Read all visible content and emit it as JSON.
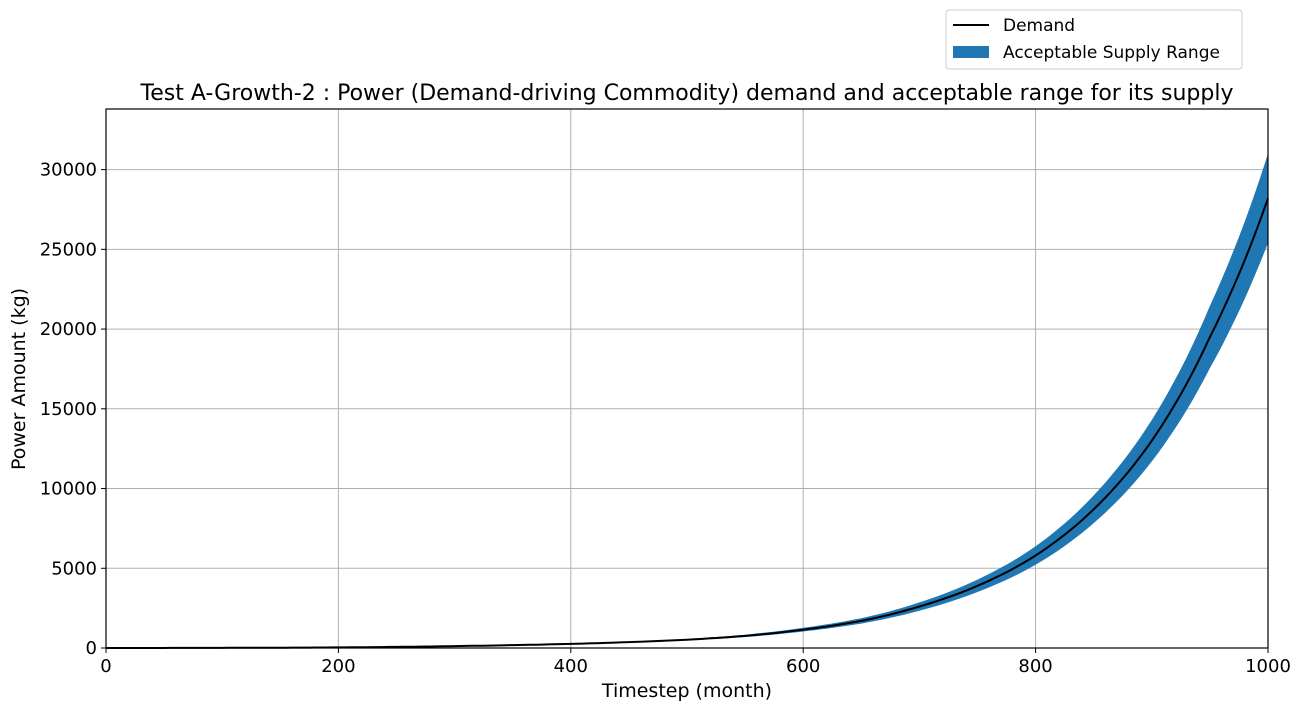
{
  "chart_data": {
    "type": "area",
    "title": "Test A-Growth-2 : Power (Demand-driving Commodity) demand and acceptable range for its supply",
    "xlabel": "Timestep (month)",
    "ylabel": "Power Amount (kg)",
    "xlim": [
      0,
      1000
    ],
    "ylim": [
      0,
      33800
    ],
    "xticks": [
      0,
      200,
      400,
      600,
      800,
      1000
    ],
    "yticks": [
      0,
      5000,
      10000,
      15000,
      20000,
      25000,
      30000
    ],
    "grid": true,
    "legend_position": "upper-right, above plot",
    "x": [
      0,
      50,
      100,
      150,
      200,
      250,
      300,
      350,
      400,
      450,
      500,
      550,
      600,
      650,
      700,
      750,
      800,
      850,
      900,
      950,
      1000
    ],
    "series": [
      {
        "name": "Demand",
        "kind": "line",
        "color": "#000000",
        "values": [
          1,
          3,
          9,
          20,
          38,
          70,
          120,
          180,
          260,
          370,
          520,
          760,
          1150,
          1700,
          2600,
          3900,
          5800,
          8700,
          13000,
          19500,
          28200
        ]
      },
      {
        "name": "Acceptable Supply Range",
        "kind": "band",
        "color": "#1f77b4",
        "lower": [
          0.9,
          2.7,
          8.1,
          18,
          34,
          63,
          108,
          162,
          234,
          333,
          468,
          684,
          1035,
          1530,
          2340,
          3510,
          5220,
          7830,
          11700,
          17550,
          25400
        ],
        "upper": [
          1.1,
          3.3,
          9.9,
          22,
          42,
          77,
          132,
          198,
          286,
          407,
          572,
          836,
          1265,
          1870,
          2860,
          4290,
          6380,
          9570,
          14300,
          21450,
          31000
        ]
      }
    ]
  }
}
